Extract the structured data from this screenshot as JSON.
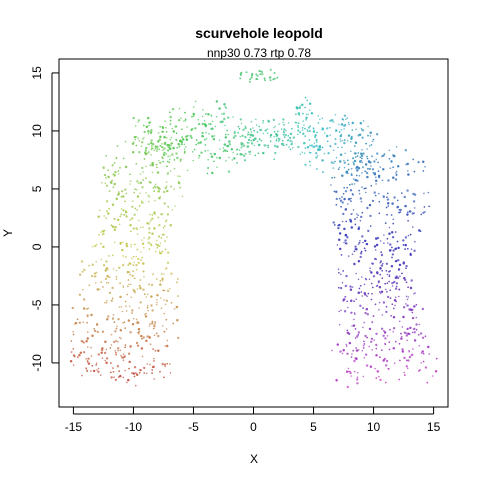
{
  "chart_data": {
    "type": "scatter",
    "title": "scurvehole leopold",
    "subtitle": "nnp30 0.73 rtp 0.78",
    "xlabel": "X",
    "ylabel": "Y",
    "xlim": [
      -16.2,
      16.2
    ],
    "ylim": [
      -13.8,
      16.2
    ],
    "xticks": [
      -15,
      -10,
      -5,
      0,
      5,
      10,
      15
    ],
    "yticks": [
      -10,
      -5,
      0,
      5,
      10,
      15
    ],
    "xtick_labels": [
      "-15",
      "-10",
      "-5",
      "0",
      "5",
      "10",
      "15"
    ],
    "ytick_labels": [
      "-10",
      "-5",
      "0",
      "5",
      "10",
      "15"
    ],
    "color_by": "position along S-curve arc",
    "colors": [
      "#c0443b",
      "#b68a3e",
      "#a7bb3f",
      "#6abf3f",
      "#3fbf70",
      "#3fbfb0",
      "#4a8fbf",
      "#4a55bf",
      "#8a4abf",
      "#c04ac0"
    ],
    "grid": false,
    "legend": "none"
  }
}
